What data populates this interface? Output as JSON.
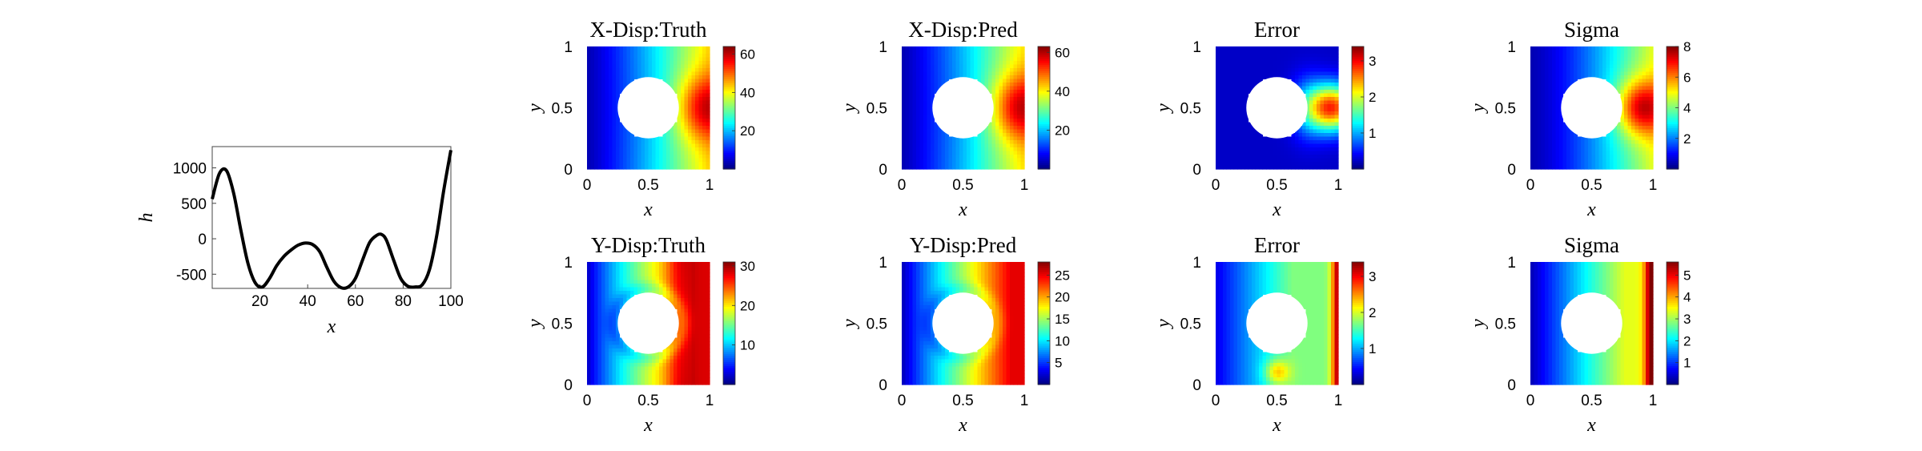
{
  "chart_data": [
    {
      "type": "line",
      "xlabel": "x",
      "ylabel": "h",
      "xlim": [
        0,
        100
      ],
      "ylim": [
        -700,
        1300
      ],
      "xticks": [
        20,
        40,
        60,
        80,
        100
      ],
      "yticks": [
        -500,
        0,
        500,
        1000
      ],
      "series": [
        {
          "color": "#000000",
          "x": [
            0,
            3,
            6,
            9,
            12,
            15,
            18,
            21,
            24,
            27,
            30,
            33,
            36,
            39,
            42,
            45,
            48,
            51,
            54,
            57,
            60,
            63,
            66,
            69,
            71,
            73,
            76,
            79,
            82,
            85,
            88,
            91,
            94,
            97,
            100
          ],
          "y": [
            560,
            920,
            960,
            640,
            120,
            -350,
            -620,
            -680,
            -560,
            -380,
            -250,
            -160,
            -90,
            -60,
            -80,
            -180,
            -400,
            -600,
            -690,
            -680,
            -560,
            -300,
            -50,
            50,
            60,
            -20,
            -300,
            -560,
            -670,
            -680,
            -650,
            -440,
            30,
            680,
            1250
          ]
        }
      ]
    },
    {
      "type": "heatmap",
      "title": "X-Disp:Truth",
      "xlabel": "x",
      "ylabel": "y",
      "xticks": [
        "0",
        "0.5",
        "1"
      ],
      "yticks": [
        "0",
        "0.5",
        "1"
      ],
      "colorbar": {
        "min": 0,
        "max": 64,
        "ticks": [
          20,
          40,
          60
        ]
      },
      "field": "x-disp-truth",
      "colormap": "jet"
    },
    {
      "type": "heatmap",
      "title": "X-Disp:Pred",
      "xlabel": "x",
      "ylabel": "y",
      "xticks": [
        "0",
        "0.5",
        "1"
      ],
      "yticks": [
        "0",
        "0.5",
        "1"
      ],
      "colorbar": {
        "min": 0,
        "max": 63,
        "ticks": [
          20,
          40,
          60
        ]
      },
      "field": "x-disp-pred",
      "colormap": "jet"
    },
    {
      "type": "heatmap",
      "title": "Error",
      "xlabel": "x",
      "ylabel": "y",
      "xticks": [
        "0",
        "0.5",
        "1"
      ],
      "yticks": [
        "0",
        "0.5",
        "1"
      ],
      "colorbar": {
        "min": 0,
        "max": 3.4,
        "ticks": [
          1,
          2,
          3
        ]
      },
      "field": "x-disp-error",
      "colormap": "jet"
    },
    {
      "type": "heatmap",
      "title": "Sigma",
      "xlabel": "x",
      "ylabel": "y",
      "xticks": [
        "0",
        "0.5",
        "1"
      ],
      "yticks": [
        "0",
        "0.5",
        "1"
      ],
      "colorbar": {
        "min": 0,
        "max": 8,
        "ticks": [
          2,
          4,
          6,
          8
        ]
      },
      "field": "x-disp-sigma",
      "colormap": "jet"
    },
    {
      "type": "heatmap",
      "title": "Y-Disp:Truth",
      "xlabel": "x",
      "ylabel": "y",
      "xticks": [
        "0",
        "0.5",
        "1"
      ],
      "yticks": [
        "0",
        "0.5",
        "1"
      ],
      "colorbar": {
        "min": 0,
        "max": 31,
        "ticks": [
          10,
          20,
          30
        ]
      },
      "field": "y-disp-truth",
      "colormap": "jet"
    },
    {
      "type": "heatmap",
      "title": "Y-Disp:Pred",
      "xlabel": "x",
      "ylabel": "y",
      "xticks": [
        "0",
        "0.5",
        "1"
      ],
      "yticks": [
        "0",
        "0.5",
        "1"
      ],
      "colorbar": {
        "min": 0,
        "max": 28,
        "ticks": [
          5,
          10,
          15,
          20,
          25
        ]
      },
      "field": "y-disp-pred",
      "colormap": "jet"
    },
    {
      "type": "heatmap",
      "title": "Error",
      "xlabel": "x",
      "ylabel": "y",
      "xticks": [
        "0",
        "0.5",
        "1"
      ],
      "yticks": [
        "0",
        "0.5",
        "1"
      ],
      "colorbar": {
        "min": 0,
        "max": 3.4,
        "ticks": [
          1,
          2,
          3
        ]
      },
      "field": "y-disp-error",
      "colormap": "jet"
    },
    {
      "type": "heatmap",
      "title": "Sigma",
      "xlabel": "x",
      "ylabel": "y",
      "xticks": [
        "0",
        "0.5",
        "1"
      ],
      "yticks": [
        "0",
        "0.5",
        "1"
      ],
      "colorbar": {
        "min": 0,
        "max": 5.6,
        "ticks": [
          1,
          2,
          3,
          4,
          5
        ]
      },
      "field": "y-disp-sigma",
      "colormap": "jet"
    }
  ]
}
